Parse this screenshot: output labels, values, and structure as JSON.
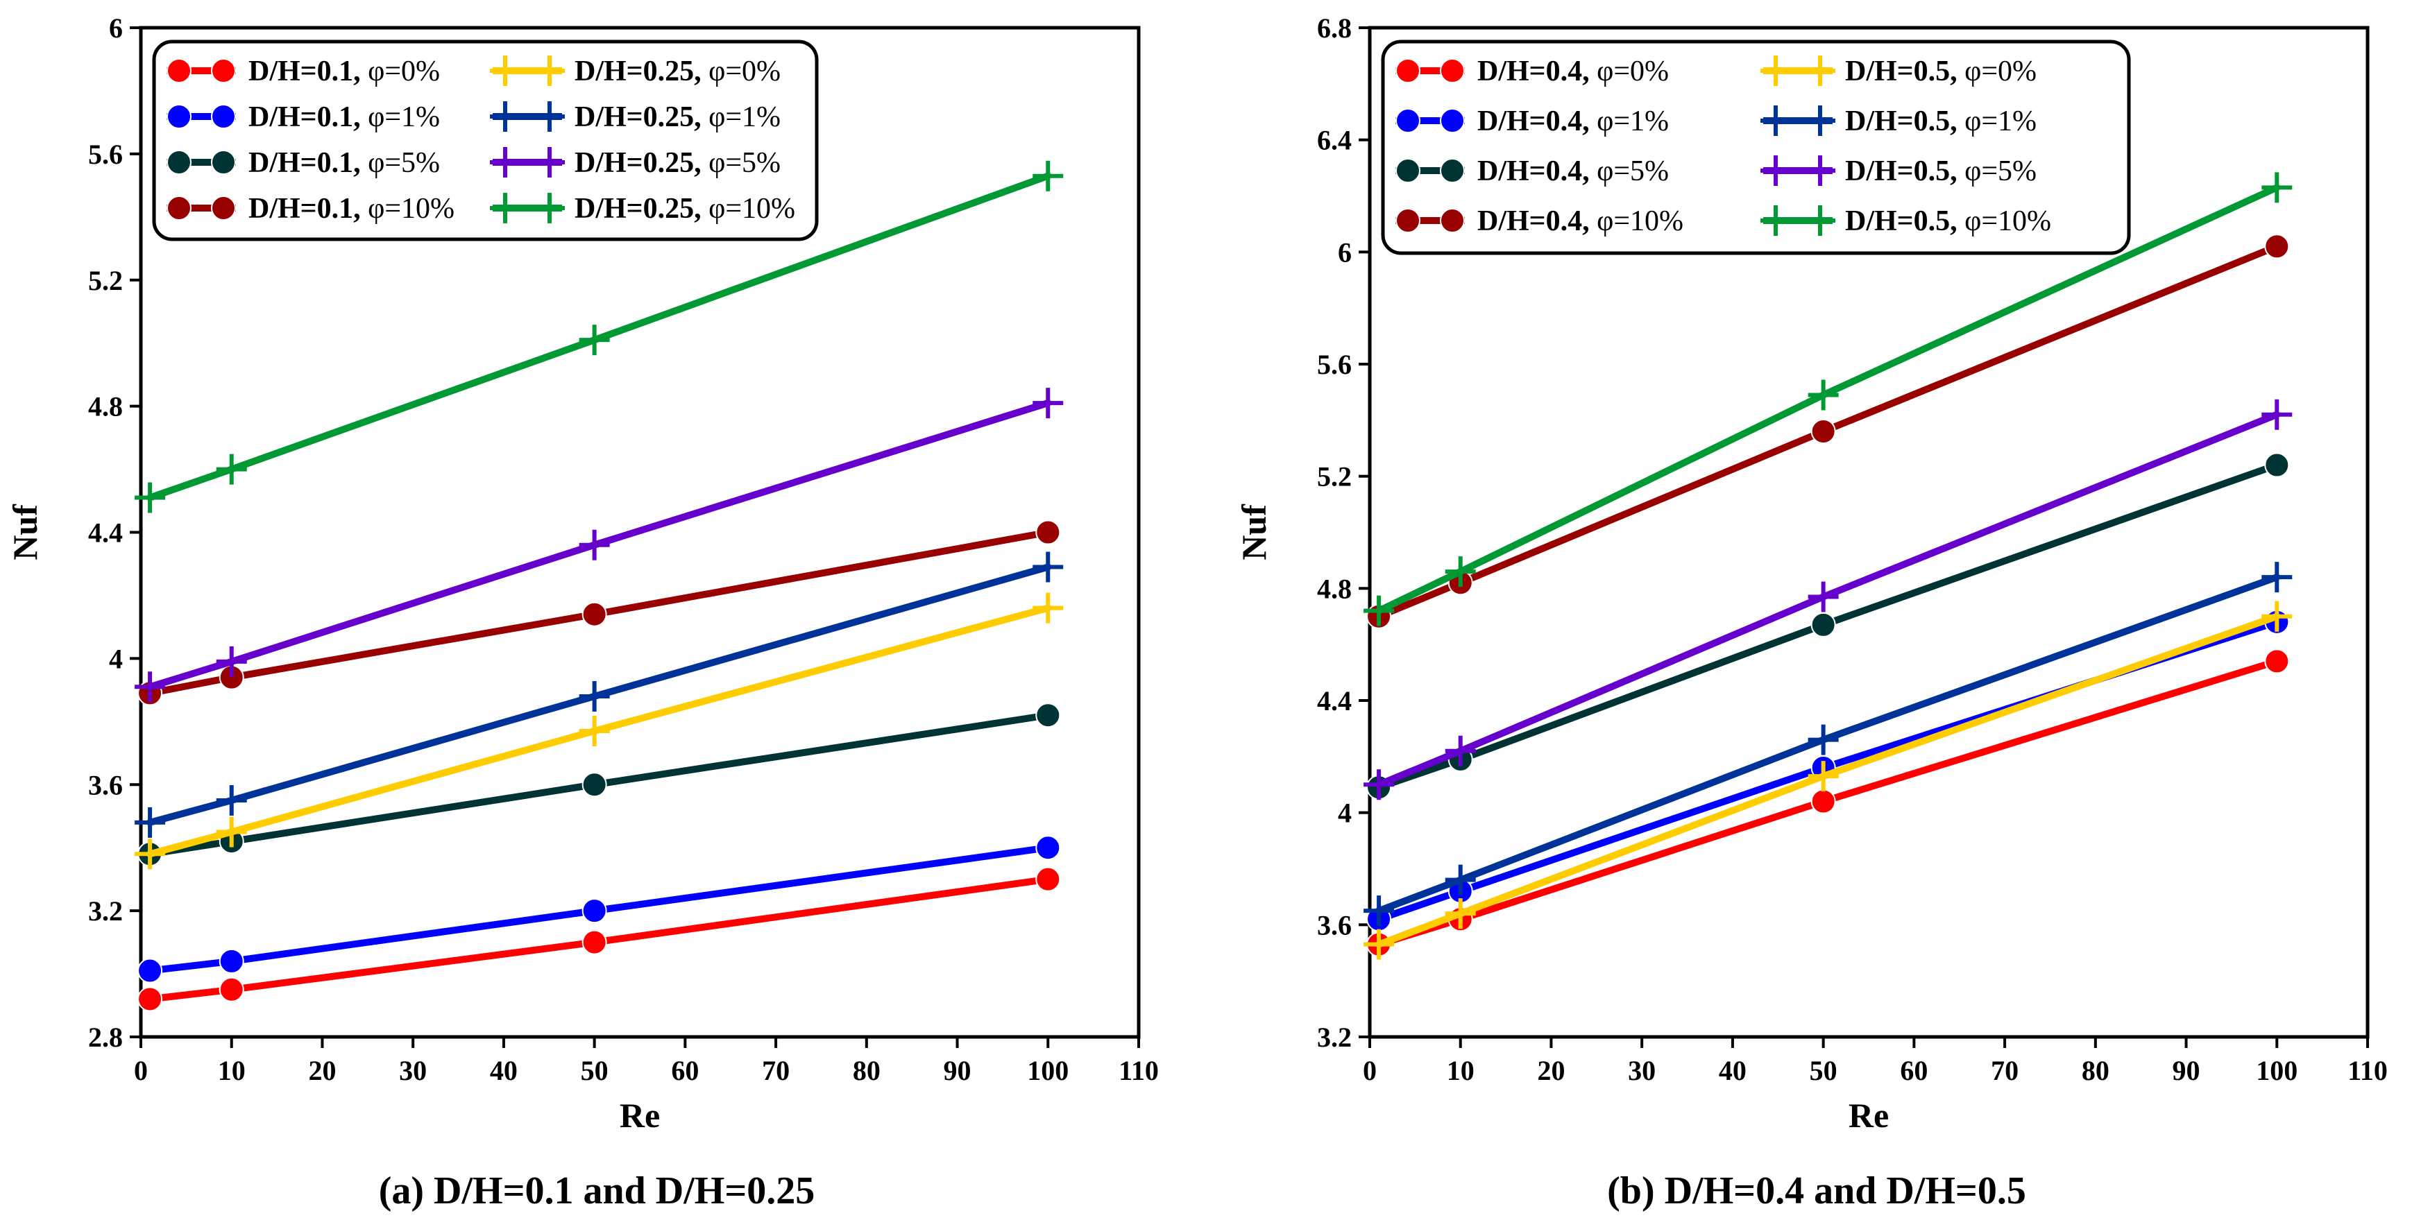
{
  "chart_data": [
    {
      "type": "line",
      "id": "a",
      "caption": "(a) D/H=0.1 and D/H=0.25",
      "xlabel": "Re",
      "ylabel": "Nuf",
      "xlim": [
        0,
        110
      ],
      "ylim": [
        2.8,
        6.0
      ],
      "xticks": [
        "0",
        "10",
        "20",
        "30",
        "40",
        "50",
        "60",
        "70",
        "80",
        "90",
        "100",
        "110"
      ],
      "yticks": [
        "2.8",
        "3.2",
        "3.6",
        "4",
        "4.4",
        "4.8",
        "5.2",
        "5.6",
        "6"
      ],
      "x": [
        1,
        10,
        50,
        100
      ],
      "legend_position": "top-left",
      "series": [
        {
          "dh": "D/H=0.1,",
          "phi": " φ=0%",
          "color": "#ff0000",
          "marker": "circle",
          "values": [
            2.92,
            2.95,
            3.1,
            3.3
          ]
        },
        {
          "dh": "D/H=0.1,",
          "phi": " φ=1%",
          "color": "#0000ff",
          "marker": "circle",
          "values": [
            3.01,
            3.04,
            3.2,
            3.4
          ]
        },
        {
          "dh": "D/H=0.1,",
          "phi": " φ=5%",
          "color": "#003333",
          "marker": "circle",
          "values": [
            3.38,
            3.42,
            3.6,
            3.82
          ]
        },
        {
          "dh": "D/H=0.1,",
          "phi": " φ=10%",
          "color": "#990000",
          "marker": "circle",
          "values": [
            3.89,
            3.94,
            4.14,
            4.4
          ]
        },
        {
          "dh": "D/H=0.25,",
          "phi": " φ=0%",
          "color": "#ffcc00",
          "marker": "plus",
          "values": [
            3.38,
            3.45,
            3.77,
            4.16
          ]
        },
        {
          "dh": "D/H=0.25,",
          "phi": " φ=1%",
          "color": "#003399",
          "marker": "plus",
          "values": [
            3.48,
            3.55,
            3.88,
            4.29
          ]
        },
        {
          "dh": "D/H=0.25,",
          "phi": " φ=5%",
          "color": "#6600cc",
          "marker": "plus",
          "values": [
            3.91,
            3.99,
            4.36,
            4.81
          ]
        },
        {
          "dh": "D/H=0.25,",
          "phi": " φ=10%",
          "color": "#009933",
          "marker": "plus",
          "values": [
            4.51,
            4.6,
            5.01,
            5.53
          ]
        }
      ]
    },
    {
      "type": "line",
      "id": "b",
      "caption": "(b) D/H=0.4 and D/H=0.5",
      "xlabel": "Re",
      "ylabel": "Nuf",
      "xlim": [
        0,
        110
      ],
      "ylim": [
        3.2,
        6.8
      ],
      "xticks": [
        "0",
        "10",
        "20",
        "30",
        "40",
        "50",
        "60",
        "70",
        "80",
        "90",
        "100",
        "110"
      ],
      "yticks": [
        "3.2",
        "3.6",
        "4",
        "4.4",
        "4.8",
        "5.2",
        "5.6",
        "6",
        "6.4",
        "6.8"
      ],
      "x": [
        1,
        10,
        50,
        100
      ],
      "legend_position": "top-left",
      "series": [
        {
          "dh": "D/H=0.4,",
          "phi": " φ=0%",
          "color": "#ff0000",
          "marker": "circle",
          "values": [
            3.53,
            3.62,
            4.04,
            4.54
          ]
        },
        {
          "dh": "D/H=0.4,",
          "phi": " φ=1%",
          "color": "#0000ff",
          "marker": "circle",
          "values": [
            3.62,
            3.72,
            4.16,
            4.68
          ]
        },
        {
          "dh": "D/H=0.4,",
          "phi": " φ=5%",
          "color": "#003333",
          "marker": "circle",
          "values": [
            4.09,
            4.19,
            4.67,
            5.24
          ]
        },
        {
          "dh": "D/H=0.4,",
          "phi": " φ=10%",
          "color": "#990000",
          "marker": "circle",
          "values": [
            4.7,
            4.82,
            5.36,
            6.02
          ]
        },
        {
          "dh": "D/H=0.5,",
          "phi": " φ=0%",
          "color": "#ffcc00",
          "marker": "plus",
          "values": [
            3.53,
            3.64,
            4.13,
            4.7
          ]
        },
        {
          "dh": "D/H=0.5,",
          "phi": " φ=1%",
          "color": "#003399",
          "marker": "plus",
          "values": [
            3.65,
            3.76,
            4.26,
            4.84
          ]
        },
        {
          "dh": "D/H=0.5,",
          "phi": " φ=5%",
          "color": "#6600cc",
          "marker": "plus",
          "values": [
            4.1,
            4.22,
            4.77,
            5.42
          ]
        },
        {
          "dh": "D/H=0.5,",
          "phi": " φ=10%",
          "color": "#009933",
          "marker": "plus",
          "values": [
            4.72,
            4.86,
            5.49,
            6.23
          ]
        }
      ]
    }
  ]
}
